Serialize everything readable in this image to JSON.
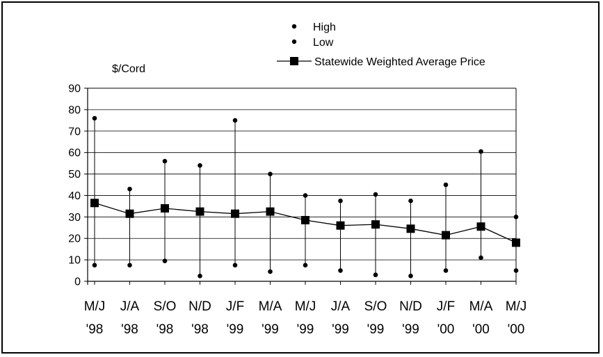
{
  "chart_data": {
    "type": "line",
    "title": "",
    "ylabel": "$/Cord",
    "xlabel": "",
    "ylim": [
      0,
      90
    ],
    "yticks": [
      0,
      10,
      20,
      30,
      40,
      50,
      60,
      70,
      80,
      90
    ],
    "grid": true,
    "legend_position": "top-right",
    "categories": [
      {
        "line1": "M/J",
        "line2": "'98"
      },
      {
        "line1": "J/A",
        "line2": "'98"
      },
      {
        "line1": "S/O",
        "line2": "'98"
      },
      {
        "line1": "N/D",
        "line2": "'98"
      },
      {
        "line1": "J/F",
        "line2": "'99"
      },
      {
        "line1": "M/A",
        "line2": "'99"
      },
      {
        "line1": "M/J",
        "line2": "'99"
      },
      {
        "line1": "J/A",
        "line2": "'99"
      },
      {
        "line1": "S/O",
        "line2": "'99"
      },
      {
        "line1": "N/D",
        "line2": "'99"
      },
      {
        "line1": "J/F",
        "line2": "'00"
      },
      {
        "line1": "M/A",
        "line2": "'00"
      },
      {
        "line1": "M/J",
        "line2": "'00"
      }
    ],
    "series": [
      {
        "name": "High",
        "marker": "circle",
        "values": [
          76,
          43,
          56,
          54,
          75,
          50,
          40,
          37.5,
          40.5,
          37.5,
          45,
          60.5,
          30
        ]
      },
      {
        "name": "Low",
        "marker": "circle",
        "values": [
          7.5,
          7.5,
          9.5,
          2.5,
          7.5,
          4.5,
          7.5,
          5,
          3,
          2.5,
          5,
          11,
          5
        ]
      },
      {
        "name": "Statewide Weighted Average Price",
        "marker": "square",
        "values": [
          36.5,
          31.5,
          34,
          32.5,
          31.5,
          32.5,
          28.5,
          26,
          26.5,
          24.5,
          21.5,
          25.5,
          18
        ]
      }
    ],
    "colors": {
      "marks": "#000000",
      "grid": "#000000",
      "background": "#ffffff"
    }
  }
}
